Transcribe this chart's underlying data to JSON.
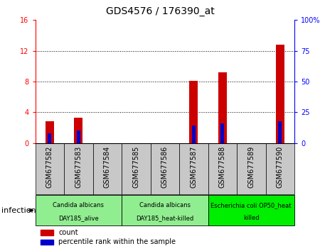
{
  "title": "GDS4576 / 176390_at",
  "samples": [
    "GSM677582",
    "GSM677583",
    "GSM677584",
    "GSM677585",
    "GSM677586",
    "GSM677587",
    "GSM677588",
    "GSM677589",
    "GSM677590"
  ],
  "counts": [
    2.8,
    3.3,
    0,
    0,
    0,
    8.1,
    9.2,
    0,
    12.8
  ],
  "percentile_ranks": [
    8,
    10,
    0,
    0,
    0,
    14,
    16,
    0,
    18
  ],
  "ylim_left": [
    0,
    16
  ],
  "ylim_right": [
    0,
    100
  ],
  "yticks_left": [
    0,
    4,
    8,
    12,
    16
  ],
  "yticks_right": [
    0,
    25,
    50,
    75,
    100
  ],
  "yticklabels_right": [
    "0",
    "25",
    "50",
    "75",
    "100%"
  ],
  "groups": [
    {
      "label_line1": "Candida albicans",
      "label_line2": "DAY185_alive",
      "start": 0,
      "end": 3,
      "color": "#90EE90"
    },
    {
      "label_line1": "Candida albicans",
      "label_line2": "DAY185_heat-killed",
      "start": 3,
      "end": 6,
      "color": "#90EE90"
    },
    {
      "label_line1": "Escherichia coli OP50_heat",
      "label_line2": "killed",
      "start": 6,
      "end": 9,
      "color": "#00EE00"
    }
  ],
  "bar_color_red": "#CC0000",
  "bar_color_blue": "#0000CC",
  "bar_bg_color": "#C8C8C8",
  "count_bar_width": 0.3,
  "percentile_bar_width": 0.12,
  "xlabel_infection": "infection",
  "legend_count": "count",
  "legend_percentile": "percentile rank within the sample",
  "title_fontsize": 10,
  "tick_fontsize": 7,
  "group_fontsize": 6,
  "legend_fontsize": 7,
  "infection_fontsize": 8,
  "sample_fontsize": 7
}
